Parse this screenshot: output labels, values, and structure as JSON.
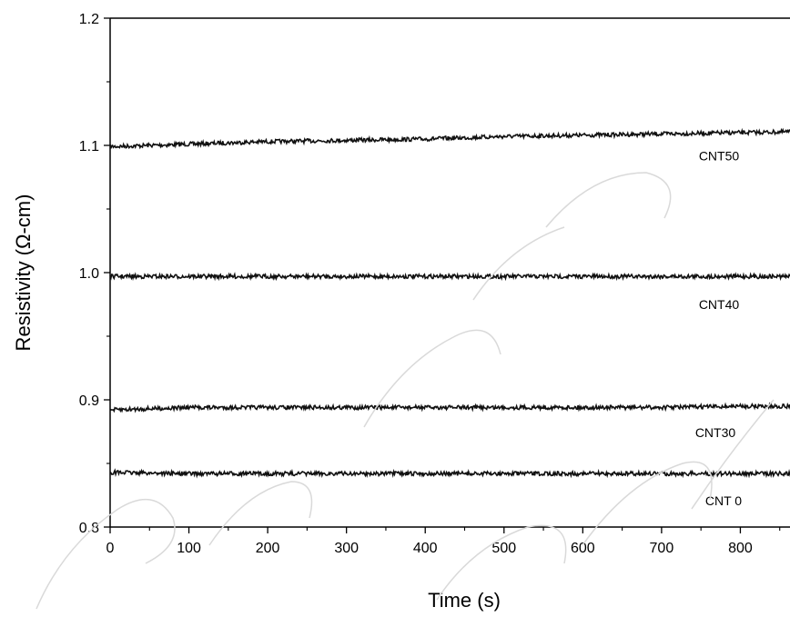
{
  "chart_data": {
    "type": "line",
    "title": "",
    "xlabel": "Time (s)",
    "ylabel": "Resistivity (Ω-cm)",
    "xlim": [
      0,
      900
    ],
    "ylim": [
      0.8,
      1.2
    ],
    "x_ticks": [
      0,
      100,
      200,
      300,
      400,
      500,
      600,
      700,
      800
    ],
    "x_tick_labels": [
      "0",
      "100",
      "200",
      "300",
      "400",
      "500",
      "600",
      "700",
      "800"
    ],
    "y_ticks": [
      0.8,
      0.9,
      1.0,
      1.1,
      1.2
    ],
    "y_tick_labels": [
      "0.8",
      "0.9",
      "1.0",
      "1.1",
      "1.2"
    ],
    "grid": false,
    "legend": "none",
    "series": [
      {
        "name": "CNT50",
        "x": [
          0,
          100,
          200,
          300,
          400,
          500,
          600,
          700,
          800,
          900
        ],
        "values": [
          1.099,
          1.101,
          1.103,
          1.104,
          1.105,
          1.107,
          1.108,
          1.109,
          1.11,
          1.111
        ]
      },
      {
        "name": "CNT40",
        "x": [
          0,
          100,
          200,
          300,
          400,
          500,
          600,
          700,
          800,
          900
        ],
        "values": [
          0.997,
          0.997,
          0.997,
          0.997,
          0.997,
          0.997,
          0.997,
          0.997,
          0.997,
          0.997
        ]
      },
      {
        "name": "CNT30",
        "x": [
          0,
          100,
          200,
          300,
          400,
          500,
          600,
          700,
          800,
          900
        ],
        "values": [
          0.892,
          0.894,
          0.894,
          0.894,
          0.894,
          0.894,
          0.894,
          0.894,
          0.895,
          0.895
        ]
      },
      {
        "name": "CNT 0",
        "x": [
          0,
          100,
          200,
          300,
          400,
          500,
          600,
          700,
          800,
          900
        ],
        "values": [
          0.843,
          0.842,
          0.842,
          0.842,
          0.842,
          0.842,
          0.842,
          0.842,
          0.842,
          0.842
        ]
      }
    ],
    "series_color": "#111111"
  }
}
